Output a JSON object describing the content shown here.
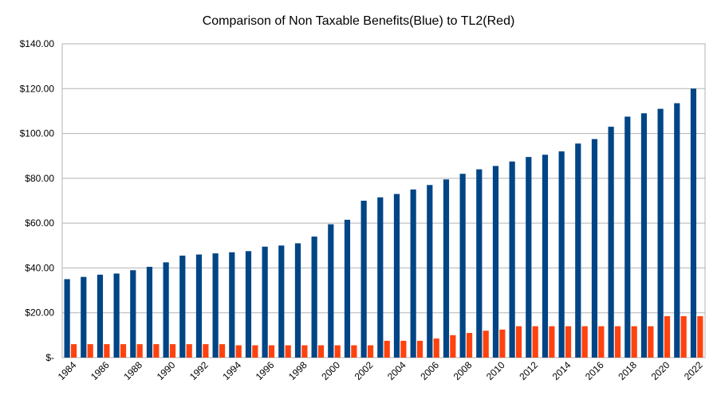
{
  "chart_data": {
    "type": "bar",
    "title": "Comparison of Non Taxable Benefits(Blue) to TL2(Red)",
    "xlabel": "",
    "ylabel": "",
    "ylim": [
      0,
      140
    ],
    "y_ticks": [
      {
        "value": 0,
        "label": "$-"
      },
      {
        "value": 20,
        "label": "$20.00"
      },
      {
        "value": 40,
        "label": "$40.00"
      },
      {
        "value": 60,
        "label": "$60.00"
      },
      {
        "value": 80,
        "label": "$80.00"
      },
      {
        "value": 100,
        "label": "$100.00"
      },
      {
        "value": 120,
        "label": "$120.00"
      },
      {
        "value": 140,
        "label": "$140.00"
      }
    ],
    "grid": "horizontal",
    "legend": "none",
    "categories": [
      "1984",
      "1985",
      "1986",
      "1987",
      "1988",
      "1989",
      "1990",
      "1991",
      "1992",
      "1993",
      "1994",
      "1995",
      "1996",
      "1997",
      "1998",
      "1999",
      "2000",
      "2001",
      "2002",
      "2003",
      "2004",
      "2005",
      "2006",
      "2007",
      "2008",
      "2009",
      "2010",
      "2011",
      "2012",
      "2013",
      "2014",
      "2015",
      "2016",
      "2017",
      "2018",
      "2019",
      "2020",
      "2021",
      "2022"
    ],
    "x_tick_labels": [
      "1984",
      "",
      "1986",
      "",
      "1988",
      "",
      "1990",
      "",
      "1992",
      "",
      "1994",
      "",
      "1996",
      "",
      "1998",
      "",
      "2000",
      "",
      "2002",
      "",
      "2004",
      "",
      "2006",
      "",
      "2008",
      "",
      "2010",
      "",
      "2012",
      "",
      "2014",
      "",
      "2016",
      "",
      "2018",
      "",
      "2020",
      "",
      "2022"
    ],
    "series": [
      {
        "color": "#004586",
        "values": [
          35,
          36,
          37,
          37.5,
          39,
          40.5,
          42.5,
          45.5,
          46,
          46.5,
          47,
          47.5,
          49.5,
          50,
          51,
          54,
          59.5,
          61.5,
          70,
          71.5,
          73,
          75,
          77,
          79.5,
          82,
          84,
          85.5,
          87.5,
          89.5,
          90.5,
          92,
          95.5,
          97.5,
          103,
          107.5,
          109,
          111,
          113.5,
          120
        ]
      },
      {
        "color": "#ff420e",
        "values": [
          6,
          6,
          6,
          6,
          6,
          6,
          6,
          6,
          6,
          6,
          5.5,
          5.5,
          5.5,
          5.5,
          5.5,
          5.5,
          5.5,
          5.5,
          5.5,
          7.5,
          7.5,
          7.5,
          8.5,
          10,
          11,
          12,
          12.5,
          14,
          14,
          14,
          14,
          14,
          14,
          14,
          14,
          14,
          18.5,
          18.5,
          18.5
        ]
      }
    ]
  }
}
